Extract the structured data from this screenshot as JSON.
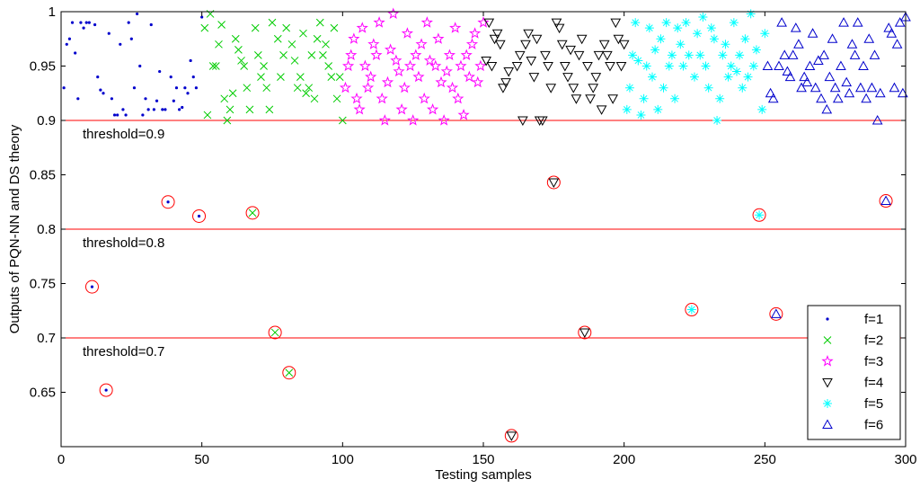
{
  "chart_data": {
    "type": "scatter",
    "title": "",
    "xlabel": "Testing samples",
    "ylabel": "Outputs of PQN-NN and DS theory",
    "xlim": [
      0,
      300
    ],
    "ylim": [
      0.6,
      1.0
    ],
    "xticks": [
      0,
      50,
      100,
      150,
      200,
      250,
      300
    ],
    "xtick_labels": [
      "0",
      "50",
      "100",
      "150",
      "200",
      "250",
      "300"
    ],
    "yticks": [
      0.65,
      0.7,
      0.75,
      0.8,
      0.85,
      0.9,
      0.95,
      1.0
    ],
    "ytick_labels": [
      "0.65",
      "0.7",
      "0.75",
      "0.8",
      "0.85",
      "0.9",
      "0.95",
      "1"
    ],
    "grid": false,
    "legend_position": "bottom-right",
    "thresholds": [
      {
        "value": 0.9,
        "label": "threshold=0.9",
        "color": "#ff0000"
      },
      {
        "value": 0.8,
        "label": "threshold=0.8",
        "color": "#ff0000"
      },
      {
        "value": 0.7,
        "label": "threshold=0.7",
        "color": "#ff0000"
      }
    ],
    "series": [
      {
        "name": "f=1",
        "marker": "dot",
        "color": "#0000cc",
        "x": [
          1,
          2,
          3,
          4,
          5,
          6,
          7,
          8,
          9,
          10,
          12,
          13,
          14,
          15,
          17,
          18,
          19,
          20,
          21,
          22,
          23,
          24,
          25,
          26,
          27,
          28,
          29,
          30,
          31,
          32,
          33,
          34,
          35,
          36,
          37,
          39,
          40,
          41,
          42,
          43,
          44,
          45,
          46,
          47,
          48,
          50
        ],
        "y": [
          0.93,
          0.97,
          0.975,
          0.99,
          0.962,
          0.92,
          0.99,
          0.985,
          0.99,
          0.99,
          0.988,
          0.94,
          0.928,
          0.925,
          0.98,
          0.92,
          0.905,
          0.905,
          0.97,
          0.91,
          0.905,
          0.99,
          0.975,
          0.93,
          0.998,
          0.95,
          0.905,
          0.92,
          0.91,
          0.988,
          0.91,
          0.918,
          0.945,
          0.91,
          0.91,
          0.94,
          0.918,
          0.93,
          0.91,
          0.912,
          0.93,
          0.925,
          0.955,
          0.94,
          0.93,
          0.995
        ]
      },
      {
        "name": "f=2",
        "marker": "x",
        "color": "#00cc00",
        "x": [
          51,
          52,
          53,
          54,
          55,
          56,
          57,
          58,
          59,
          60,
          61,
          62,
          63,
          64,
          65,
          66,
          67,
          69,
          70,
          71,
          72,
          73,
          74,
          75,
          77,
          78,
          79,
          80,
          82,
          83,
          84,
          85,
          86,
          87,
          88,
          89,
          90,
          91,
          92,
          93,
          94,
          95,
          96,
          97,
          98,
          99,
          100
        ],
        "y": [
          0.985,
          0.905,
          0.998,
          0.95,
          0.95,
          0.97,
          0.988,
          0.92,
          0.9,
          0.91,
          0.925,
          0.975,
          0.965,
          0.955,
          0.95,
          0.93,
          0.91,
          0.985,
          0.96,
          0.94,
          0.95,
          0.93,
          0.91,
          0.99,
          0.975,
          0.94,
          0.96,
          0.985,
          0.97,
          0.955,
          0.93,
          0.94,
          0.98,
          0.925,
          0.93,
          0.96,
          0.92,
          0.975,
          0.99,
          0.96,
          0.97,
          0.95,
          0.94,
          0.985,
          0.92,
          0.94,
          0.9
        ]
      },
      {
        "name": "f=3",
        "marker": "star",
        "color": "#ff00ff",
        "x": [
          101,
          102,
          103,
          104,
          105,
          106,
          107,
          108,
          109,
          110,
          111,
          112,
          113,
          114,
          115,
          116,
          117,
          118,
          119,
          120,
          121,
          122,
          123,
          124,
          125,
          126,
          127,
          128,
          129,
          130,
          131,
          132,
          133,
          134,
          135,
          136,
          137,
          138,
          139,
          140,
          141,
          142,
          143,
          144,
          145,
          146,
          147,
          148,
          149,
          150
        ],
        "y": [
          0.93,
          0.95,
          0.96,
          0.975,
          0.92,
          0.91,
          0.985,
          0.95,
          0.93,
          0.94,
          0.97,
          0.96,
          0.99,
          0.92,
          0.9,
          0.935,
          0.965,
          0.998,
          0.955,
          0.945,
          0.91,
          0.93,
          0.98,
          0.95,
          0.9,
          0.96,
          0.94,
          0.97,
          0.92,
          0.99,
          0.955,
          0.91,
          0.95,
          0.975,
          0.935,
          0.9,
          0.945,
          0.96,
          0.93,
          0.985,
          0.92,
          0.95,
          0.905,
          0.96,
          0.94,
          0.97,
          0.98,
          0.935,
          0.95,
          0.99
        ]
      },
      {
        "name": "f=4",
        "marker": "tri-down",
        "color": "#000000",
        "x": [
          151,
          152,
          153,
          154,
          155,
          156,
          157,
          158,
          159,
          162,
          163,
          164,
          165,
          166,
          167,
          168,
          169,
          170,
          171,
          172,
          173,
          174,
          176,
          177,
          178,
          179,
          180,
          181,
          182,
          183,
          184,
          185,
          187,
          188,
          189,
          190,
          191,
          192,
          193,
          194,
          195,
          196,
          197,
          198,
          199,
          200
        ],
        "y": [
          0.955,
          0.99,
          0.95,
          0.975,
          0.98,
          0.97,
          0.93,
          0.935,
          0.945,
          0.95,
          0.96,
          0.9,
          0.97,
          0.98,
          0.955,
          0.94,
          0.975,
          0.9,
          0.9,
          0.96,
          0.95,
          0.93,
          0.99,
          0.985,
          0.97,
          0.95,
          0.94,
          0.965,
          0.93,
          0.92,
          0.96,
          0.975,
          0.95,
          0.92,
          0.93,
          0.94,
          0.96,
          0.91,
          0.97,
          0.96,
          0.95,
          0.92,
          0.99,
          0.975,
          0.95,
          0.97
        ]
      },
      {
        "name": "f=5",
        "marker": "asterisk",
        "color": "#00ffff",
        "x": [
          201,
          202,
          203,
          204,
          205,
          206,
          207,
          208,
          209,
          210,
          211,
          212,
          213,
          214,
          215,
          216,
          217,
          218,
          219,
          220,
          221,
          222,
          223,
          225,
          226,
          227,
          228,
          229,
          230,
          231,
          232,
          233,
          234,
          235,
          236,
          237,
          238,
          239,
          240,
          241,
          242,
          243,
          244,
          245,
          246,
          247,
          249,
          250
        ],
        "y": [
          0.91,
          0.93,
          0.96,
          0.99,
          0.955,
          0.905,
          0.92,
          0.95,
          0.985,
          0.94,
          0.965,
          0.91,
          0.975,
          0.93,
          0.99,
          0.95,
          0.96,
          0.92,
          0.985,
          0.97,
          0.95,
          0.99,
          0.96,
          0.94,
          0.98,
          0.96,
          0.995,
          0.95,
          0.93,
          0.985,
          0.975,
          0.9,
          0.92,
          0.96,
          0.97,
          0.94,
          0.95,
          0.99,
          0.945,
          0.96,
          0.93,
          0.975,
          0.94,
          0.998,
          0.95,
          0.965,
          0.91,
          0.98
        ]
      },
      {
        "name": "f=6",
        "marker": "tri-up",
        "color": "#0000cc",
        "x": [
          251,
          252,
          253,
          255,
          256,
          257,
          258,
          259,
          260,
          261,
          262,
          263,
          264,
          265,
          266,
          267,
          268,
          269,
          270,
          271,
          272,
          273,
          274,
          275,
          276,
          277,
          278,
          279,
          280,
          281,
          282,
          283,
          284,
          285,
          286,
          287,
          288,
          289,
          290,
          291,
          294,
          295,
          296,
          297,
          298,
          299,
          300
        ],
        "y": [
          0.95,
          0.925,
          0.92,
          0.95,
          0.99,
          0.96,
          0.945,
          0.94,
          0.96,
          0.985,
          0.97,
          0.93,
          0.94,
          0.935,
          0.95,
          0.98,
          0.93,
          0.955,
          0.92,
          0.96,
          0.91,
          0.94,
          0.975,
          0.93,
          0.92,
          0.95,
          0.99,
          0.935,
          0.925,
          0.97,
          0.96,
          0.99,
          0.93,
          0.95,
          0.92,
          0.975,
          0.93,
          0.96,
          0.9,
          0.925,
          0.985,
          0.98,
          0.93,
          0.97,
          0.99,
          0.925,
          0.995
        ]
      }
    ],
    "misclassified": [
      {
        "x": 11,
        "y": 0.747,
        "class": "f=1"
      },
      {
        "x": 16,
        "y": 0.652,
        "class": "f=1"
      },
      {
        "x": 38,
        "y": 0.825,
        "class": "f=1"
      },
      {
        "x": 49,
        "y": 0.812,
        "class": "f=1"
      },
      {
        "x": 68,
        "y": 0.815,
        "class": "f=2"
      },
      {
        "x": 76,
        "y": 0.705,
        "class": "f=2"
      },
      {
        "x": 81,
        "y": 0.668,
        "class": "f=2"
      },
      {
        "x": 160,
        "y": 0.61,
        "class": "f=4"
      },
      {
        "x": 175,
        "y": 0.843,
        "class": "f=4"
      },
      {
        "x": 186,
        "y": 0.705,
        "class": "f=4"
      },
      {
        "x": 224,
        "y": 0.726,
        "class": "f=5"
      },
      {
        "x": 248,
        "y": 0.813,
        "class": "f=5"
      },
      {
        "x": 254,
        "y": 0.722,
        "class": "f=6"
      },
      {
        "x": 293,
        "y": 0.826,
        "class": "f=6"
      }
    ],
    "circle_color": "#ff0000"
  }
}
